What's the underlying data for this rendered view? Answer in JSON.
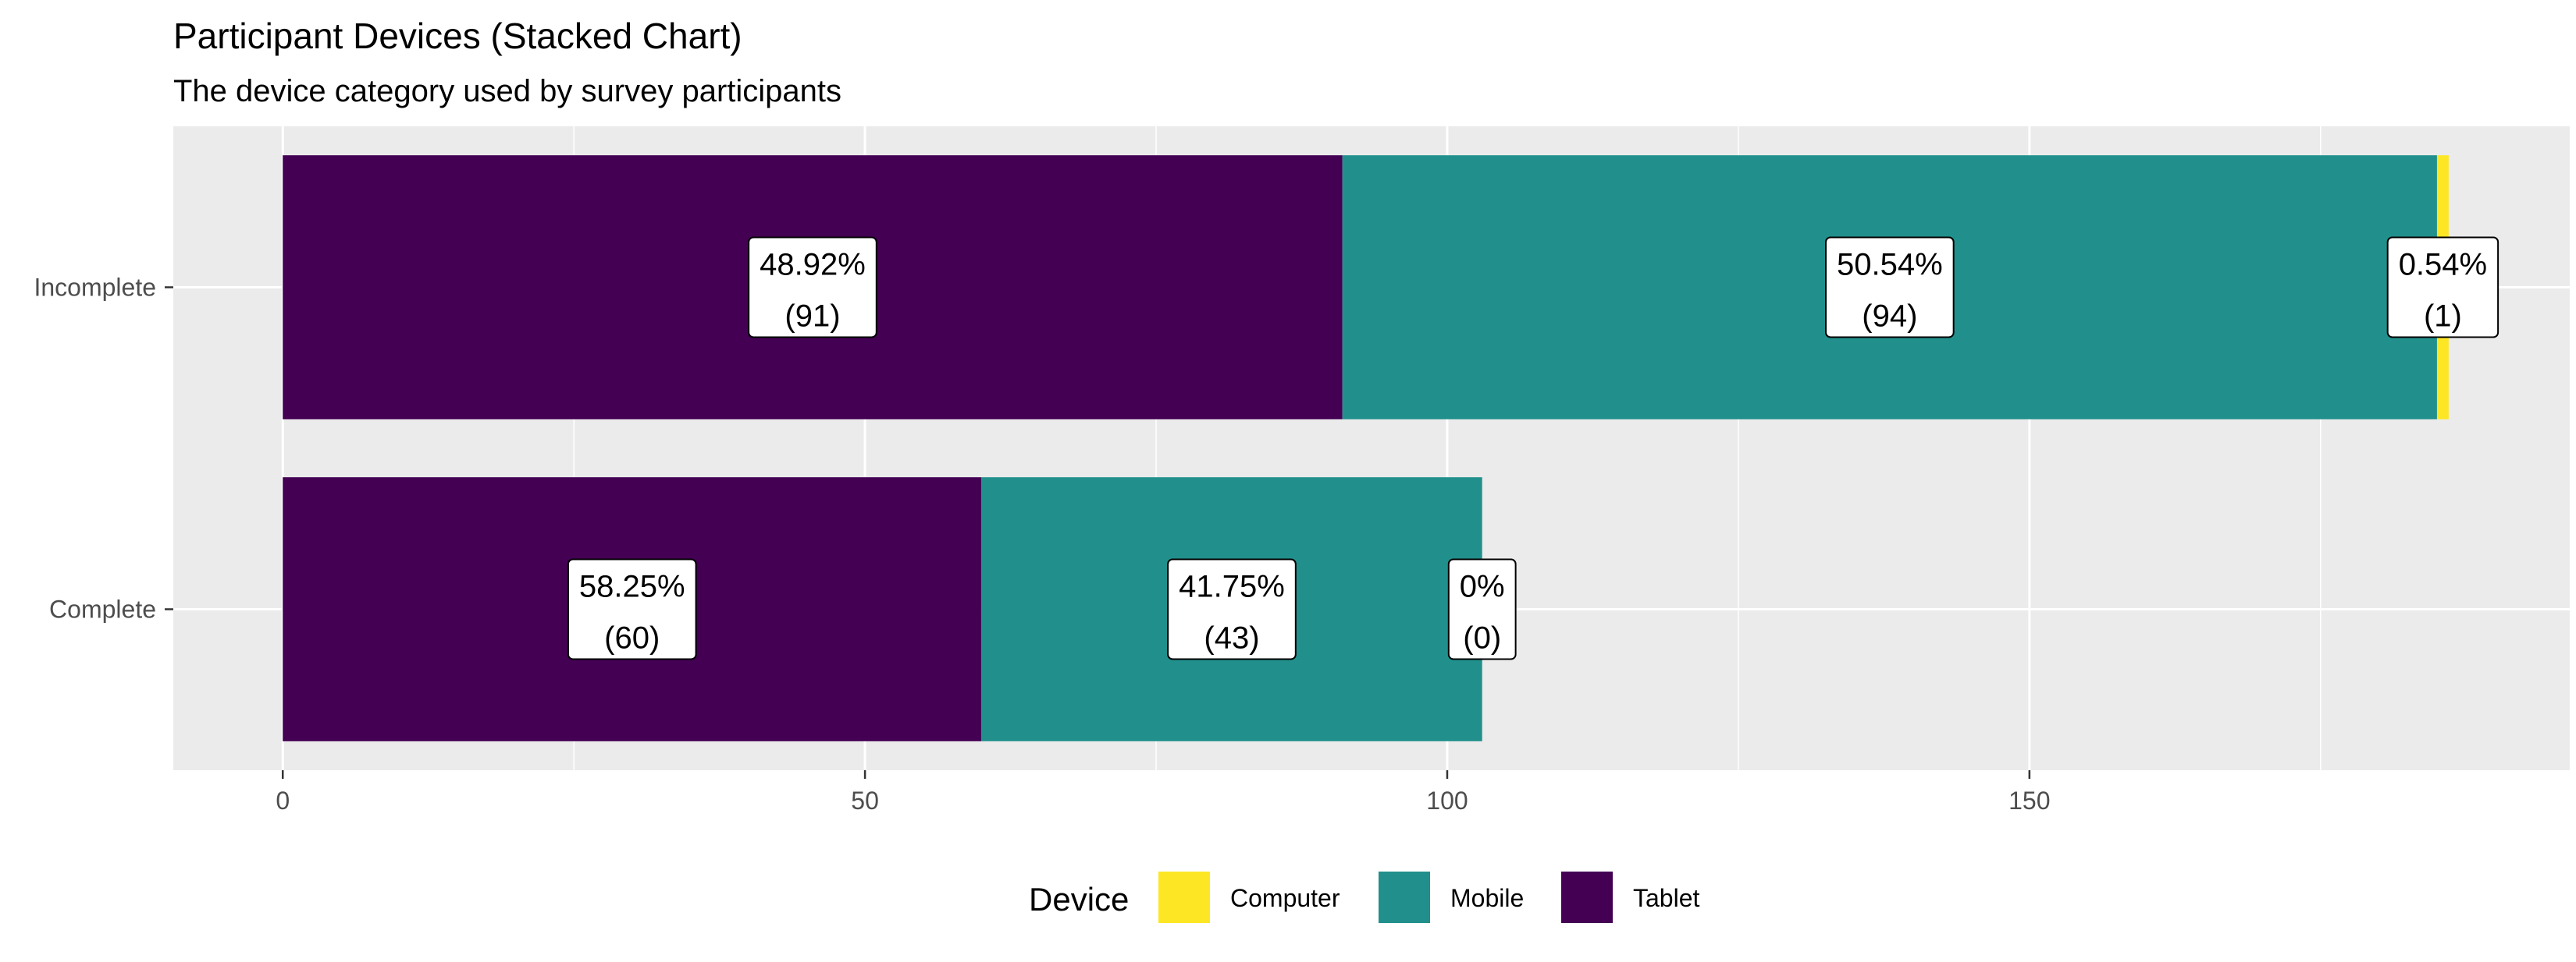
{
  "chart_data": {
    "type": "bar",
    "orientation": "horizontal",
    "stacked": true,
    "title": "Participant Devices (Stacked Chart)",
    "subtitle": "The device category used by survey participants",
    "xlabel": "",
    "ylabel": "",
    "categories": [
      "Complete",
      "Incomplete"
    ],
    "series": [
      {
        "name": "Tablet",
        "values": [
          60,
          91
        ],
        "percents": [
          "58.25%",
          "48.92%"
        ],
        "color": "#440154"
      },
      {
        "name": "Mobile",
        "values": [
          43,
          94
        ],
        "percents": [
          "41.75%",
          "50.54%"
        ],
        "color": "#21908C"
      },
      {
        "name": "Computer",
        "values": [
          0,
          1
        ],
        "percents": [
          "0%",
          "0.54%"
        ],
        "color": "#FDE725"
      }
    ],
    "xlim": [
      -9.4,
      196.4
    ],
    "x_ticks": [
      0,
      50,
      100,
      150
    ],
    "x_tick_labels": [
      "0",
      "50",
      "100",
      "150"
    ],
    "x_minor_ticks": [
      25,
      75,
      125,
      175
    ],
    "grid": true,
    "legend": {
      "title": "Device",
      "position": "bottom",
      "entries": [
        {
          "name": "Computer",
          "color": "#FDE725"
        },
        {
          "name": "Mobile",
          "color": "#21908C"
        },
        {
          "name": "Tablet",
          "color": "#440154"
        }
      ]
    }
  }
}
